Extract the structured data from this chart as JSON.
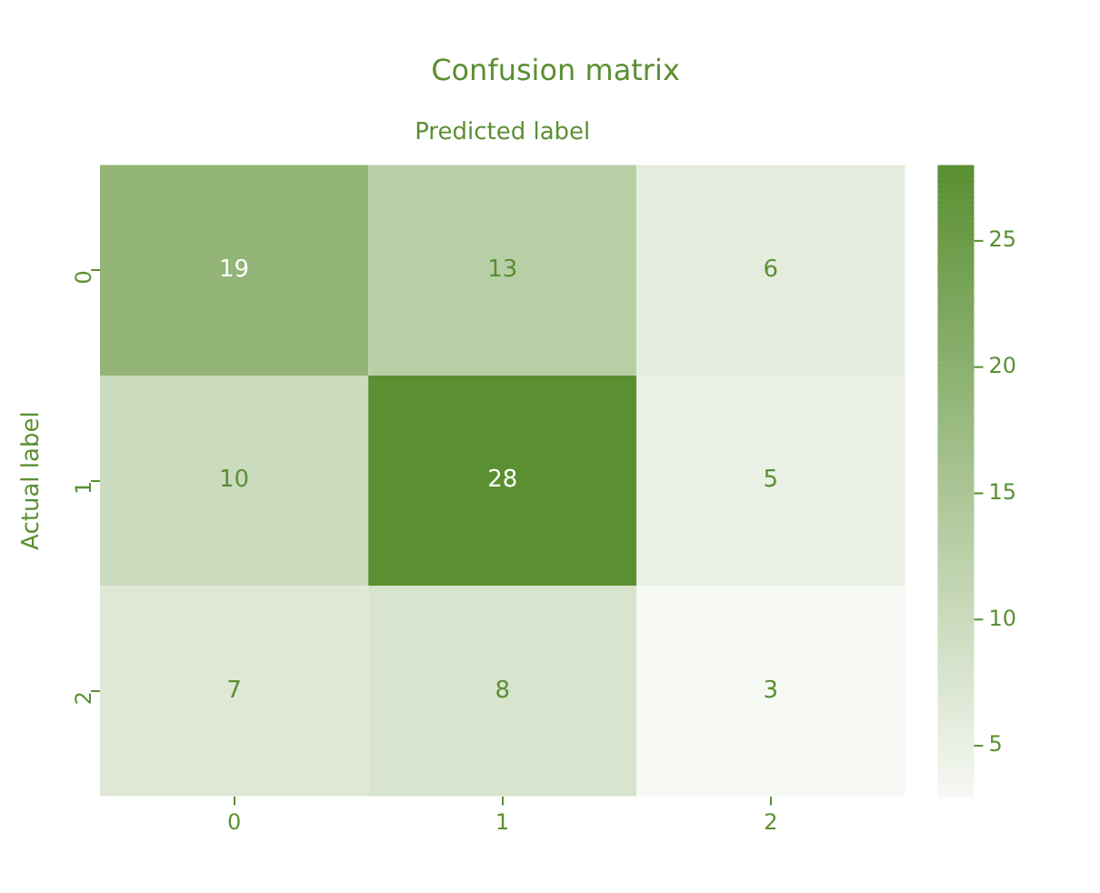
{
  "chart_data": {
    "type": "heatmap",
    "title": "Confusion matrix",
    "xlabel": "Predicted label",
    "ylabel": "Actual label",
    "categories": [
      "0",
      "1",
      "2"
    ],
    "y_categories": [
      "0",
      "1",
      "2"
    ],
    "cells": [
      [
        19,
        13,
        6
      ],
      [
        10,
        28,
        5
      ],
      [
        7,
        8,
        3
      ]
    ],
    "color": "#5a8f32",
    "clim": [
      3,
      28
    ],
    "cticks": [
      5,
      10,
      15,
      20,
      25
    ],
    "data_labels": true
  }
}
